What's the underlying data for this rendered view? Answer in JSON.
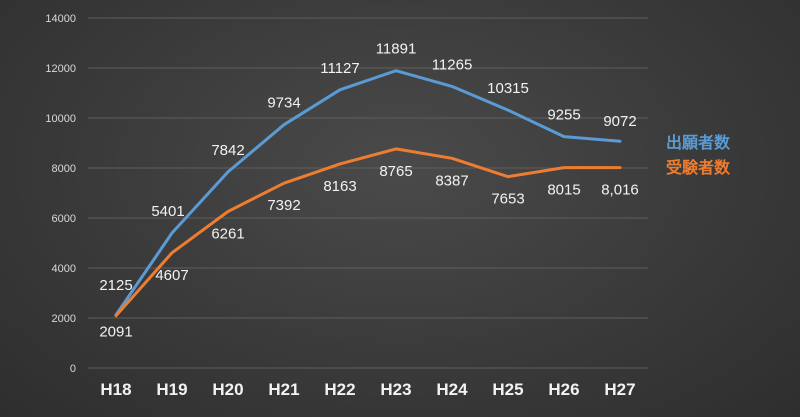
{
  "chart_data": {
    "type": "line",
    "title": "",
    "xlabel": "",
    "ylabel": "",
    "categories": [
      "H18",
      "H19",
      "H20",
      "H21",
      "H22",
      "H23",
      "H24",
      "H25",
      "H26",
      "H27"
    ],
    "yticks": [
      "0",
      "2000",
      "4000",
      "6000",
      "8000",
      "10000",
      "12000",
      "14000"
    ],
    "ylim": [
      0,
      14000
    ],
    "grid": true,
    "legend_position": "right",
    "series": [
      {
        "name": "出願者数",
        "color": "#5b9bd5",
        "values": [
          2125,
          5401,
          7842,
          9734,
          11127,
          11891,
          11265,
          10315,
          9255,
          9072
        ],
        "labels": [
          "2125",
          "5401",
          "7842",
          "9734",
          "11127",
          "11891",
          "11265",
          "10315",
          "9255",
          "9072"
        ]
      },
      {
        "name": "受験者数",
        "color": "#ed7d31",
        "values": [
          2091,
          4607,
          6261,
          7392,
          8163,
          8765,
          8387,
          7653,
          8015,
          8016
        ],
        "labels": [
          "2091",
          "4607",
          "6261",
          "7392",
          "8163",
          "8765",
          "8387",
          "7653",
          "8015",
          "8,016"
        ]
      }
    ]
  }
}
